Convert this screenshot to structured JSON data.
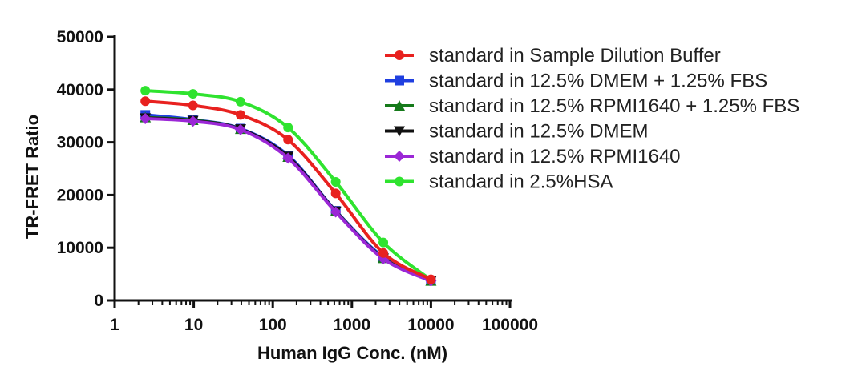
{
  "chart_data": {
    "type": "line",
    "title": "",
    "xlabel": "Human IgG Conc. (nM)",
    "ylabel": "TR-FRET Ratio",
    "xscale": "log",
    "xlim": [
      1,
      100000
    ],
    "ylim": [
      0,
      50000
    ],
    "xticks": [
      1,
      10,
      100,
      1000,
      10000,
      100000
    ],
    "xtick_labels": [
      "1",
      "10",
      "100",
      "1000",
      "10000",
      "100000"
    ],
    "yticks": [
      0,
      10000,
      20000,
      30000,
      40000,
      50000
    ],
    "ytick_labels": [
      "0",
      "10000",
      "20000",
      "30000",
      "40000",
      "50000"
    ],
    "legend_position": "top-right",
    "x": [
      2.44,
      9.77,
      39.1,
      156,
      625,
      2500,
      10000
    ],
    "series": [
      {
        "name": "standard in Sample Dilution Buffer",
        "color": "#e8211f",
        "marker": "circle",
        "values": [
          37800,
          37000,
          35200,
          30500,
          20300,
          9000,
          4000
        ]
      },
      {
        "name": "standard in 12.5% DMEM + 1.25% FBS",
        "color": "#1f3fe0",
        "marker": "square",
        "values": [
          35200,
          34300,
          32600,
          27500,
          17000,
          8200,
          3800
        ]
      },
      {
        "name": "standard in 12.5% RPMI1640 + 1.25% FBS",
        "color": "#157a1a",
        "marker": "triangle-up",
        "values": [
          34700,
          34200,
          32500,
          27200,
          16900,
          8000,
          3700
        ]
      },
      {
        "name": "standard in 12.5% DMEM",
        "color": "#111111",
        "marker": "triangle-down",
        "values": [
          34600,
          34100,
          32500,
          27300,
          16900,
          8000,
          3700
        ]
      },
      {
        "name": "standard in 12.5% RPMI1640",
        "color": "#9b27d6",
        "marker": "diamond",
        "values": [
          34500,
          34000,
          32400,
          27000,
          16800,
          7900,
          3700
        ]
      },
      {
        "name": "standard in 2.5%HSA",
        "color": "#2fe32f",
        "marker": "circle",
        "values": [
          39800,
          39200,
          37700,
          32800,
          22500,
          11000,
          3900
        ]
      }
    ]
  }
}
